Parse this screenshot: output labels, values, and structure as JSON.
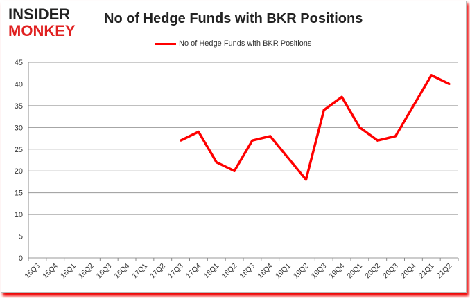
{
  "logo": {
    "line1": "INSIDER",
    "line2": "MONKEY"
  },
  "chart_data": {
    "type": "line",
    "title": "No of Hedge Funds with BKR Positions",
    "categories": [
      "15Q3",
      "15Q4",
      "16Q1",
      "16Q2",
      "16Q3",
      "16Q4",
      "17Q1",
      "17Q2",
      "17Q3",
      "17Q4",
      "18Q1",
      "18Q2",
      "18Q3",
      "18Q4",
      "19Q1",
      "19Q2",
      "19Q3",
      "19Q4",
      "20Q1",
      "20Q2",
      "20Q3",
      "20Q4",
      "21Q1",
      "21Q2"
    ],
    "series": [
      {
        "name": "No of Hedge Funds with BKR Positions",
        "color": "#ff0000",
        "values": [
          null,
          null,
          null,
          null,
          null,
          null,
          null,
          null,
          27,
          29,
          22,
          20,
          27,
          28,
          23,
          18,
          34,
          37,
          30,
          27,
          28,
          35,
          42,
          40
        ]
      }
    ],
    "ylim": [
      0,
      45
    ],
    "yticks": [
      0,
      5,
      10,
      15,
      20,
      25,
      30,
      35,
      40,
      45
    ],
    "grid": true,
    "legend": "top-center"
  }
}
